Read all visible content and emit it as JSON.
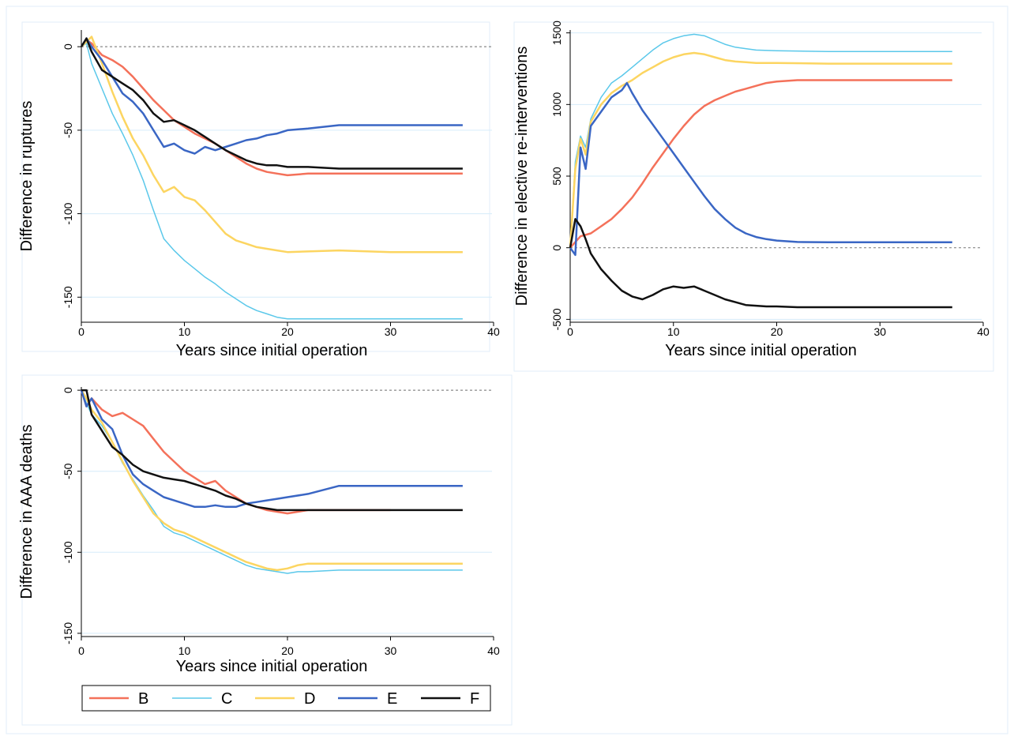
{
  "chart_data": [
    {
      "type": "line",
      "id": "ruptures",
      "xlabel": "Years since initial operation",
      "ylabel": "Difference in ruptures",
      "xlim": [
        0,
        40
      ],
      "ylim": [
        -165,
        10
      ],
      "xticks": [
        0,
        10,
        20,
        30,
        40
      ],
      "yticks": [
        0,
        -50,
        -100,
        -150
      ],
      "reference_line_y": 0,
      "series": [
        {
          "name": "B",
          "x": [
            0,
            0.5,
            1,
            2,
            3,
            4,
            5,
            6,
            7,
            8,
            9,
            10,
            11,
            12,
            13,
            14,
            15,
            16,
            17,
            18,
            19,
            20,
            22,
            25,
            30,
            37
          ],
          "values": [
            0,
            4,
            2,
            -5,
            -8,
            -12,
            -18,
            -25,
            -32,
            -38,
            -44,
            -48,
            -52,
            -55,
            -58,
            -62,
            -66,
            -70,
            -73,
            -75,
            -76,
            -77,
            -76,
            -76,
            -76,
            -76
          ]
        },
        {
          "name": "C",
          "x": [
            0,
            0.5,
            1,
            2,
            3,
            4,
            5,
            6,
            7,
            8,
            9,
            10,
            11,
            12,
            13,
            14,
            15,
            16,
            17,
            18,
            19,
            20,
            21,
            25,
            30,
            37
          ],
          "values": [
            0,
            2,
            -10,
            -25,
            -40,
            -52,
            -65,
            -80,
            -98,
            -115,
            -122,
            -128,
            -133,
            -138,
            -142,
            -147,
            -151,
            -155,
            -158,
            -160,
            -162,
            -163,
            -163,
            -163,
            -163,
            -163
          ]
        },
        {
          "name": "D",
          "x": [
            0,
            0.5,
            1,
            2,
            3,
            4,
            5,
            6,
            7,
            8,
            9,
            10,
            11,
            12,
            13,
            14,
            15,
            16,
            17,
            18,
            19,
            20,
            25,
            30,
            37
          ],
          "values": [
            0,
            3,
            6,
            -10,
            -27,
            -42,
            -55,
            -65,
            -77,
            -87,
            -84,
            -90,
            -92,
            -98,
            -105,
            -112,
            -116,
            -118,
            -120,
            -121,
            -122,
            -123,
            -122,
            -123,
            -123
          ]
        },
        {
          "name": "E",
          "x": [
            0,
            0.5,
            1,
            2,
            3,
            4,
            5,
            6,
            7,
            8,
            9,
            10,
            11,
            12,
            13,
            14,
            15,
            16,
            17,
            18,
            19,
            20,
            22,
            25,
            30,
            37
          ],
          "values": [
            0,
            5,
            0,
            -8,
            -18,
            -28,
            -33,
            -40,
            -50,
            -60,
            -58,
            -62,
            -64,
            -60,
            -62,
            -60,
            -58,
            -56,
            -55,
            -53,
            -52,
            -50,
            -49,
            -47,
            -47,
            -47
          ]
        },
        {
          "name": "F",
          "x": [
            0,
            0.5,
            1,
            2,
            3,
            4,
            5,
            6,
            7,
            8,
            9,
            10,
            11,
            12,
            13,
            14,
            15,
            16,
            17,
            18,
            19,
            20,
            22,
            25,
            30,
            37
          ],
          "values": [
            0,
            5,
            -3,
            -14,
            -18,
            -22,
            -26,
            -32,
            -40,
            -45,
            -44,
            -47,
            -50,
            -54,
            -58,
            -62,
            -65,
            -68,
            -70,
            -71,
            -71,
            -72,
            -72,
            -73,
            -73,
            -73
          ]
        }
      ]
    },
    {
      "type": "line",
      "id": "reinterventions",
      "xlabel": "Years since initial operation",
      "ylabel": "Difference in elective re-interventions",
      "xlim": [
        0,
        40
      ],
      "ylim": [
        -520,
        1520
      ],
      "xticks": [
        0,
        10,
        20,
        30,
        40
      ],
      "yticks": [
        -500,
        0,
        500,
        1000,
        1500
      ],
      "reference_line_y": 0,
      "series": [
        {
          "name": "B",
          "x": [
            0,
            0.5,
            1,
            2,
            3,
            4,
            5,
            6,
            7,
            8,
            9,
            10,
            11,
            12,
            13,
            14,
            15,
            16,
            17,
            18,
            19,
            20,
            22,
            25,
            30,
            37
          ],
          "values": [
            0,
            40,
            80,
            100,
            150,
            200,
            270,
            350,
            450,
            560,
            660,
            760,
            850,
            930,
            990,
            1030,
            1060,
            1090,
            1110,
            1130,
            1150,
            1160,
            1170,
            1170,
            1170,
            1170
          ]
        },
        {
          "name": "C",
          "x": [
            0,
            0.5,
            1,
            1.5,
            2,
            3,
            4,
            5,
            6,
            7,
            8,
            9,
            10,
            11,
            12,
            13,
            14,
            15,
            16,
            17,
            18,
            20,
            25,
            30,
            37
          ],
          "values": [
            0,
            600,
            780,
            700,
            900,
            1050,
            1150,
            1200,
            1260,
            1320,
            1380,
            1430,
            1460,
            1480,
            1490,
            1480,
            1450,
            1420,
            1400,
            1390,
            1380,
            1375,
            1370,
            1370,
            1370
          ]
        },
        {
          "name": "D",
          "x": [
            0,
            0.5,
            1,
            1.5,
            2,
            3,
            4,
            5,
            6,
            7,
            8,
            9,
            10,
            11,
            12,
            13,
            14,
            15,
            16,
            17,
            18,
            20,
            25,
            30,
            37
          ],
          "values": [
            0,
            550,
            760,
            650,
            880,
            1000,
            1080,
            1130,
            1170,
            1220,
            1260,
            1300,
            1330,
            1350,
            1360,
            1350,
            1330,
            1310,
            1300,
            1295,
            1290,
            1290,
            1285,
            1285,
            1285
          ]
        },
        {
          "name": "E",
          "x": [
            0,
            0.5,
            1,
            1.5,
            2,
            3,
            4,
            5,
            5.5,
            6,
            7,
            8,
            9,
            10,
            11,
            12,
            13,
            14,
            15,
            16,
            17,
            18,
            19,
            20,
            22,
            25,
            30,
            37
          ],
          "values": [
            0,
            -50,
            700,
            550,
            850,
            950,
            1050,
            1100,
            1150,
            1080,
            960,
            860,
            760,
            660,
            560,
            460,
            360,
            270,
            200,
            140,
            100,
            75,
            60,
            50,
            40,
            38,
            38,
            38
          ]
        },
        {
          "name": "F",
          "x": [
            0,
            0.5,
            1,
            1.5,
            2,
            3,
            4,
            5,
            6,
            7,
            8,
            9,
            10,
            11,
            12,
            13,
            14,
            15,
            16,
            17,
            18,
            19,
            20,
            22,
            25,
            30,
            37
          ],
          "values": [
            0,
            200,
            150,
            60,
            -40,
            -150,
            -230,
            -300,
            -340,
            -360,
            -330,
            -290,
            -270,
            -280,
            -270,
            -300,
            -330,
            -360,
            -380,
            -400,
            -405,
            -410,
            -410,
            -415,
            -415,
            -415,
            -415
          ]
        }
      ]
    },
    {
      "type": "line",
      "id": "aaa_deaths",
      "xlabel": "Years since initial operation",
      "ylabel": "Difference in AAA deaths",
      "xlim": [
        0,
        40
      ],
      "ylim": [
        -152,
        2
      ],
      "xticks": [
        0,
        10,
        20,
        30,
        40
      ],
      "yticks": [
        0,
        -50,
        -100,
        -150
      ],
      "reference_line_y": 0,
      "series": [
        {
          "name": "B",
          "x": [
            0,
            0.5,
            1,
            2,
            3,
            4,
            5,
            6,
            7,
            8,
            9,
            10,
            11,
            12,
            13,
            14,
            15,
            16,
            17,
            18,
            19,
            20,
            21,
            22,
            25,
            30
          ],
          "values": [
            0,
            -10,
            -5,
            -12,
            -16,
            -14,
            -18,
            -22,
            -30,
            -38,
            -44,
            -50,
            -54,
            -58,
            -56,
            -62,
            -66,
            -70,
            -72,
            -74,
            -75,
            -76,
            -75,
            -74,
            -74,
            -74
          ]
        },
        {
          "name": "C",
          "x": [
            0,
            0.5,
            1,
            2,
            3,
            4,
            5,
            6,
            7,
            8,
            9,
            10,
            11,
            12,
            13,
            14,
            15,
            16,
            17,
            18,
            19,
            20,
            21,
            22,
            25,
            30,
            37
          ],
          "values": [
            0,
            -8,
            -15,
            -22,
            -32,
            -45,
            -55,
            -65,
            -74,
            -84,
            -88,
            -90,
            -93,
            -96,
            -99,
            -102,
            -105,
            -108,
            -110,
            -111,
            -112,
            -113,
            -112,
            -112,
            -111,
            -111,
            -111
          ]
        },
        {
          "name": "D",
          "x": [
            0,
            0.5,
            1,
            2,
            3,
            4,
            5,
            6,
            7,
            8,
            9,
            10,
            11,
            12,
            13,
            14,
            15,
            16,
            17,
            18,
            19,
            20,
            21,
            22,
            25,
            30,
            37
          ],
          "values": [
            0,
            -5,
            -12,
            -20,
            -32,
            -44,
            -56,
            -66,
            -76,
            -82,
            -86,
            -88,
            -91,
            -94,
            -97,
            -100,
            -103,
            -106,
            -108,
            -110,
            -111,
            -110,
            -108,
            -107,
            -107,
            -107,
            -107
          ]
        },
        {
          "name": "E",
          "x": [
            0,
            0.5,
            1,
            2,
            3,
            4,
            5,
            6,
            7,
            8,
            9,
            10,
            11,
            12,
            13,
            14,
            15,
            16,
            17,
            18,
            19,
            20,
            22,
            25,
            30,
            37
          ],
          "values": [
            0,
            -10,
            -5,
            -18,
            -24,
            -40,
            -52,
            -58,
            -62,
            -66,
            -68,
            -70,
            -72,
            -72,
            -71,
            -72,
            -72,
            -70,
            -69,
            -68,
            -67,
            -66,
            -64,
            -59,
            -59,
            -59
          ]
        },
        {
          "name": "F",
          "x": [
            0,
            0.5,
            1,
            2,
            3,
            4,
            5,
            6,
            7,
            8,
            9,
            10,
            11,
            12,
            13,
            14,
            15,
            16,
            17,
            18,
            19,
            20,
            22,
            25,
            30,
            37
          ],
          "values": [
            0,
            0,
            -15,
            -25,
            -35,
            -40,
            -46,
            -50,
            -52,
            -54,
            -55,
            -56,
            -58,
            -60,
            -62,
            -65,
            -67,
            -70,
            -72,
            -73,
            -74,
            -74,
            -74,
            -74,
            -74,
            -74
          ]
        }
      ]
    }
  ],
  "colors": {
    "B": "#f4715a",
    "C": "#5bc8ea",
    "D": "#fcd561",
    "E": "#3a66c4",
    "F": "#111111",
    "gridline": "#d6ecfa",
    "reference": "#888888",
    "panel_border": "#e2eef8"
  },
  "legend": {
    "placement": "bottom",
    "items": [
      "B",
      "C",
      "D",
      "E",
      "F"
    ]
  }
}
